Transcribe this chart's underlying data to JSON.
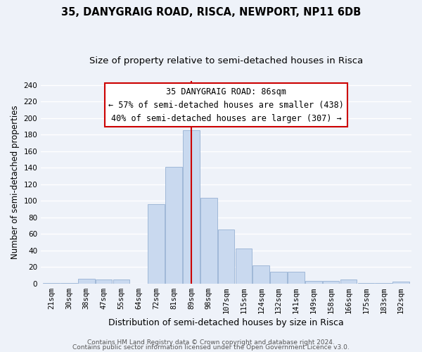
{
  "title": "35, DANYGRAIG ROAD, RISCA, NEWPORT, NP11 6DB",
  "subtitle": "Size of property relative to semi-detached houses in Risca",
  "xlabel": "Distribution of semi-detached houses by size in Risca",
  "ylabel": "Number of semi-detached properties",
  "bar_labels": [
    "21sqm",
    "30sqm",
    "38sqm",
    "47sqm",
    "55sqm",
    "64sqm",
    "72sqm",
    "81sqm",
    "89sqm",
    "98sqm",
    "107sqm",
    "115sqm",
    "124sqm",
    "132sqm",
    "141sqm",
    "149sqm",
    "158sqm",
    "166sqm",
    "175sqm",
    "183sqm",
    "192sqm"
  ],
  "bar_values": [
    1,
    1,
    6,
    5,
    5,
    0,
    96,
    141,
    185,
    104,
    65,
    42,
    22,
    14,
    14,
    3,
    3,
    5,
    1,
    1,
    2
  ],
  "bar_color": "#c9d9ef",
  "bar_edge_color": "#a0b8d8",
  "vline_x": 8,
  "vline_color": "#cc0000",
  "annotation_title": "35 DANYGRAIG ROAD: 86sqm",
  "annotation_line1": "← 57% of semi-detached houses are smaller (438)",
  "annotation_line2": "40% of semi-detached houses are larger (307) →",
  "annotation_box_color": "#ffffff",
  "annotation_box_edge": "#cc0000",
  "ylim": [
    0,
    245
  ],
  "yticks": [
    0,
    20,
    40,
    60,
    80,
    100,
    120,
    140,
    160,
    180,
    200,
    220,
    240
  ],
  "footer1": "Contains HM Land Registry data © Crown copyright and database right 2024.",
  "footer2": "Contains public sector information licensed under the Open Government Licence v3.0.",
  "bg_color": "#eef2f9",
  "plot_bg_color": "#eef2f9",
  "grid_color": "#ffffff",
  "title_fontsize": 10.5,
  "subtitle_fontsize": 9.5,
  "xlabel_fontsize": 9,
  "ylabel_fontsize": 8.5,
  "tick_fontsize": 7.5,
  "annotation_fontsize": 8.5,
  "footer_fontsize": 6.5
}
